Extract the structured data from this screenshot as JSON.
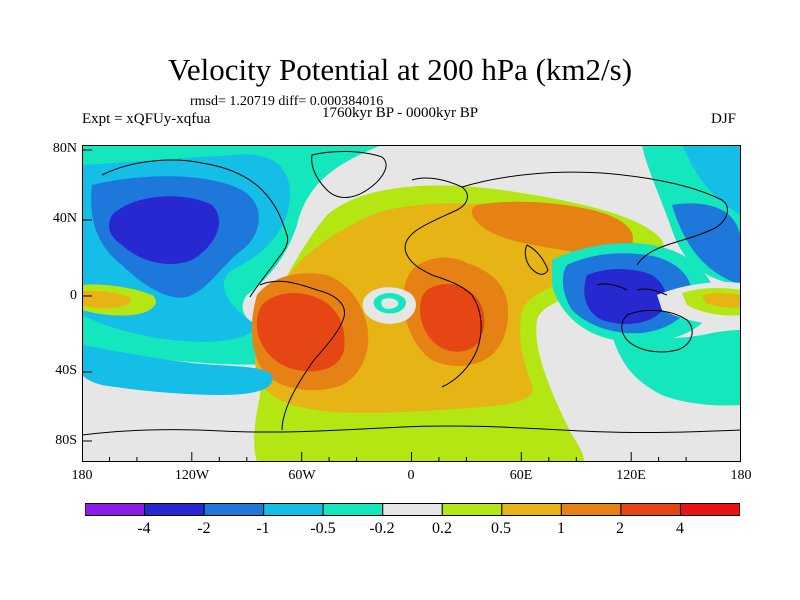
{
  "header": {
    "title": "Velocity Potential at 200 hPa (km2/s)",
    "stats": "rmsd= 1.20719 diff= 0.000384016",
    "experiment": "Expt = xQFUy-xqfua",
    "period": "1760kyr BP - 0000kyr BP",
    "season": "DJF"
  },
  "axes": {
    "lat_labels": [
      "80N",
      "40N",
      "0",
      "40S",
      "80S"
    ],
    "lon_labels": [
      "180",
      "120W",
      "60W",
      "0",
      "60E",
      "120E",
      "180"
    ]
  },
  "colorbar": {
    "labels": [
      "-4",
      "-2",
      "-1",
      "-0.5",
      "-0.2",
      "0.2",
      "0.5",
      "1",
      "2",
      "4"
    ],
    "colors": [
      "#8a1ee8",
      "#2828d0",
      "#1e78dc",
      "#14bee6",
      "#14e6be",
      "#e6e6e6",
      "#b4e614",
      "#e6b414",
      "#e68214",
      "#e64614",
      "#e61414"
    ]
  }
}
